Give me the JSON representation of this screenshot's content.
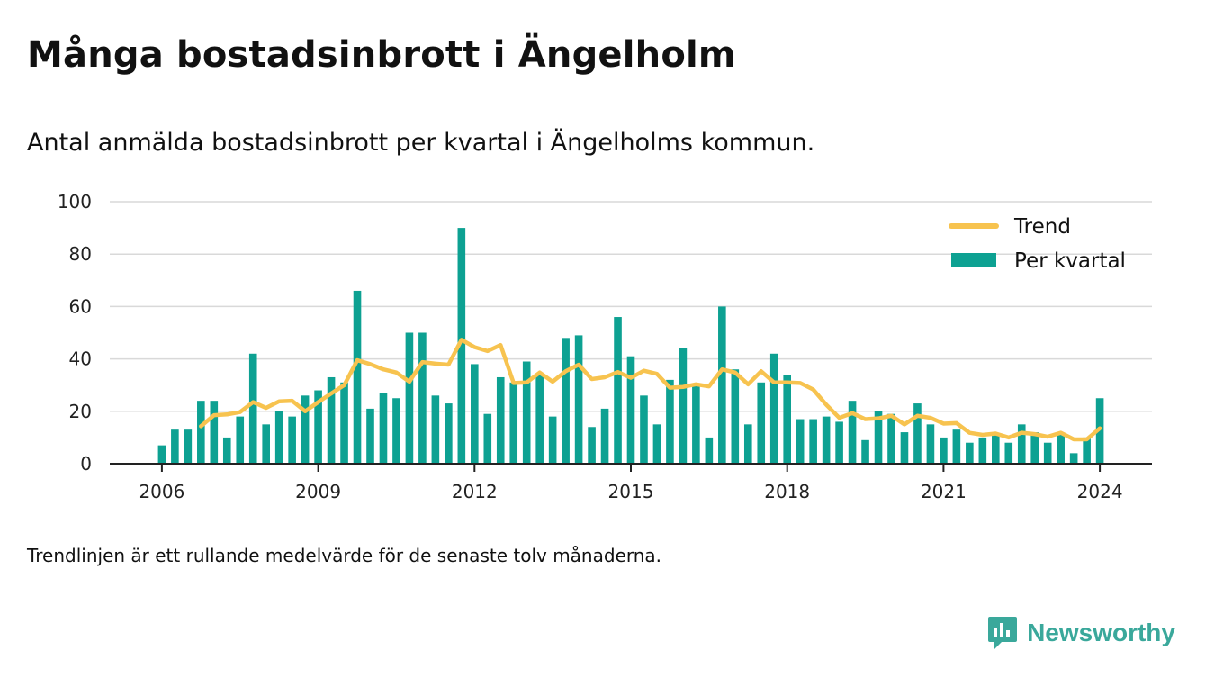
{
  "title": "Många bostadsinbrott i Ängelholm",
  "subtitle": "Antal anmälda bostadsinbrott per kvartal i Ängelholms kommun.",
  "footnote": "Trendlinjen är ett rullande medelvärde för de senaste tolv månaderna.",
  "brand": {
    "name": "Newsworthy",
    "color": "#3aa89b",
    "logo_icon": "bar-chart-speech-bubble-icon"
  },
  "colors": {
    "bars": "#0da192",
    "trend": "#f7c34f",
    "grid": "#d9d9d9",
    "axis": "#222222"
  },
  "chart_data": {
    "type": "bar",
    "ylim": [
      0,
      100
    ],
    "yticks": [
      0,
      20,
      40,
      60,
      80,
      100
    ],
    "xticks": [
      "2006",
      "2009",
      "2012",
      "2015",
      "2018",
      "2021",
      "2024"
    ],
    "xlim_years": [
      2005,
      2025
    ],
    "grid": true,
    "legend_position": "top-right",
    "start": "2006-01",
    "frequency": "quarterly",
    "series": [
      {
        "name": "Per kvartal",
        "type": "bar",
        "values": [
          7,
          13,
          13,
          24,
          24,
          10,
          18,
          42,
          15,
          20,
          18,
          26,
          28,
          33,
          31,
          66,
          21,
          27,
          25,
          50,
          50,
          26,
          23,
          90,
          38,
          19,
          33,
          31,
          39,
          34,
          18,
          48,
          49,
          14,
          21,
          56,
          41,
          26,
          15,
          32,
          44,
          30,
          10,
          60,
          36,
          15,
          31,
          42,
          34,
          17,
          17,
          18,
          16,
          24,
          9,
          20,
          19,
          12,
          23,
          15,
          10,
          13,
          8,
          10,
          11,
          8,
          15,
          12,
          8,
          11,
          4,
          10,
          25
        ]
      },
      {
        "name": "Trend",
        "type": "line",
        "start_index": 3,
        "values": [
          14.3,
          18.5,
          18.8,
          19.7,
          23.5,
          21.3,
          23.8,
          24,
          20,
          23.5,
          26.8,
          30,
          39.5,
          38,
          36,
          34.8,
          31.3,
          38.8,
          38.2,
          37.8,
          47.3,
          44.5,
          43,
          45.3,
          30.8,
          31,
          34.8,
          31.3,
          35.3,
          37.8,
          32.3,
          33,
          35,
          32.8,
          35.5,
          34.3,
          29,
          29.3,
          30.3,
          29.5,
          36,
          34.8,
          30.3,
          35.3,
          31,
          31,
          30.8,
          28.3,
          22.5,
          17.5,
          19.3,
          17,
          17.3,
          18.3,
          15,
          18.3,
          17.5,
          15.3,
          15.5,
          11.8,
          11,
          11.5,
          10,
          11.8,
          11.3,
          10.3,
          11.8,
          9.3,
          9.3,
          13.5
        ]
      }
    ]
  }
}
